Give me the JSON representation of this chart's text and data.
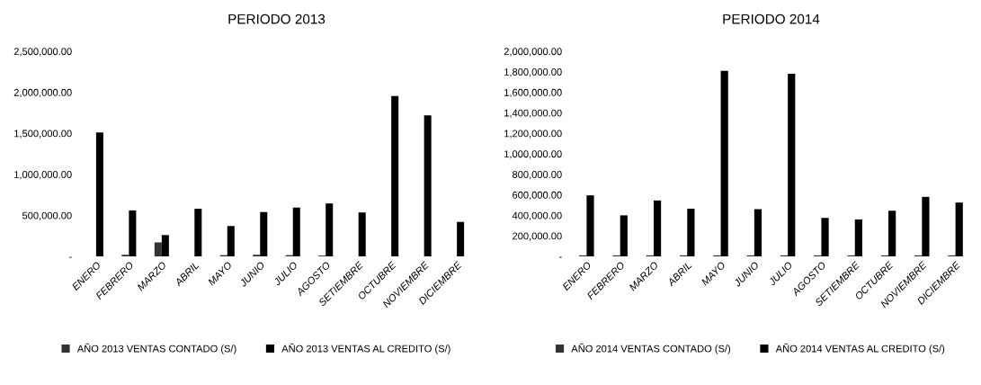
{
  "chart_data": [
    {
      "type": "bar",
      "title": "PERIODO 2013",
      "categories": [
        "ENERO",
        "FEBRERO",
        "MARZO",
        "ABRIL",
        "MAYO",
        "JUNIO",
        "JULIO",
        "AGOSTO",
        "SETIEMBRE",
        "OCTUBRE",
        "NOVIEMBRE",
        "DICIEMBRE"
      ],
      "series": [
        {
          "name": "AÑO 2013 VENTAS CONTADO (S/)",
          "color": "#333333",
          "values": [
            0,
            20000,
            170000,
            0,
            15000,
            20000,
            15000,
            10000,
            0,
            0,
            0,
            0
          ]
        },
        {
          "name": "AÑO 2013 VENTAS AL CREDITO (S/)",
          "color": "#000000",
          "values": [
            1510000,
            560000,
            260000,
            580000,
            370000,
            540000,
            595000,
            645000,
            535000,
            1955000,
            1720000,
            420000
          ]
        }
      ],
      "ylim": [
        0,
        2500000
      ],
      "yticks": [
        {
          "value": 0,
          "label": "-"
        },
        {
          "value": 500000,
          "label": "500,000.00"
        },
        {
          "value": 1000000,
          "label": "1,000,000.00"
        },
        {
          "value": 1500000,
          "label": "1,500,000.00"
        },
        {
          "value": 2000000,
          "label": "2,000,000.00"
        },
        {
          "value": 2500000,
          "label": "2,500,000.00"
        }
      ],
      "grid": false,
      "legend": "bottom"
    },
    {
      "type": "bar",
      "title": "PERIODO 2014",
      "categories": [
        "ENERO",
        "FEBRERO",
        "MARZO",
        "ABRIL",
        "MAYO",
        "JUNIO",
        "JULIO",
        "AGOSTO",
        "SETIEMBRE",
        "OCTUBRE",
        "NOVIEMBRE",
        "DICIEMBRE"
      ],
      "series": [
        {
          "name": "AÑO 2014 VENTAS CONTADO (S/)",
          "color": "#333333",
          "values": [
            10000,
            10000,
            10000,
            10000,
            10000,
            10000,
            10000,
            10000,
            10000,
            10000,
            10000,
            10000
          ]
        },
        {
          "name": "AÑO 2014 VENTAS AL CREDITO (S/)",
          "color": "#000000",
          "values": [
            595000,
            400000,
            545000,
            465000,
            1810000,
            460000,
            1780000,
            375000,
            360000,
            445000,
            580000,
            525000
          ]
        }
      ],
      "ylim": [
        0,
        2000000
      ],
      "yticks": [
        {
          "value": 0,
          "label": "-"
        },
        {
          "value": 200000,
          "label": "200,000.00"
        },
        {
          "value": 400000,
          "label": "400,000.00"
        },
        {
          "value": 600000,
          "label": "600,000.00"
        },
        {
          "value": 800000,
          "label": "800,000.00"
        },
        {
          "value": 1000000,
          "label": "1,000,000.00"
        },
        {
          "value": 1200000,
          "label": "1,200,000.00"
        },
        {
          "value": 1400000,
          "label": "1,400,000.00"
        },
        {
          "value": 1600000,
          "label": "1,600,000.00"
        },
        {
          "value": 1800000,
          "label": "1,800,000.00"
        },
        {
          "value": 2000000,
          "label": "2,000,000.00"
        }
      ],
      "grid": false,
      "legend": "bottom"
    }
  ]
}
